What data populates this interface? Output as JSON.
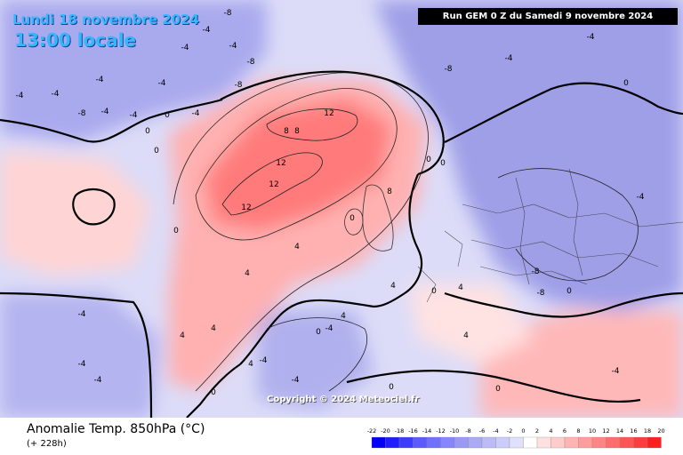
{
  "header": {
    "date_line": "Lundi 18 novembre 2024",
    "time_line": "13:00 locale",
    "run_banner": "Run GEM 0 Z du Samedi 9 novembre 2024"
  },
  "copyright": "Copyright © 2024 Meteociel.fr",
  "footer": {
    "title": "Anomalie Temp. 850hPa (°C)",
    "lead_time": "(+ 228h)"
  },
  "legend": {
    "ticks": [
      "-22",
      "-20",
      "-18",
      "-16",
      "-14",
      "-12",
      "-10",
      "-8",
      "-6",
      "-4",
      "-2",
      "0",
      "2",
      "4",
      "6",
      "8",
      "10",
      "12",
      "14",
      "16",
      "18",
      "20"
    ],
    "colors": [
      "#0000ff",
      "#1e1eff",
      "#3c3cff",
      "#5a5aff",
      "#7070ff",
      "#8585ff",
      "#9a9af5",
      "#aaaaf5",
      "#bbbbf8",
      "#ccccfa",
      "#e0e0fc",
      "#ffffff",
      "#ffe0e0",
      "#ffcccc",
      "#ffb4b4",
      "#ff9c9c",
      "#ff8484",
      "#ff6c6c",
      "#ff5454",
      "#ff3c3c",
      "#ff1e1e"
    ]
  },
  "map_labels": [
    {
      "text": "-8"
    },
    {
      "text": "-4"
    },
    {
      "text": "-4"
    },
    {
      "text": "-4"
    },
    {
      "text": "-8"
    },
    {
      "text": "-8"
    },
    {
      "text": "-4"
    },
    {
      "text": "0"
    },
    {
      "text": "-4"
    },
    {
      "text": "-4"
    },
    {
      "text": "-8"
    },
    {
      "text": "-4"
    },
    {
      "text": "-4"
    },
    {
      "text": "0"
    },
    {
      "text": "-4"
    },
    {
      "text": "-4"
    },
    {
      "text": "0"
    },
    {
      "text": "12"
    },
    {
      "text": "8"
    },
    {
      "text": "8"
    },
    {
      "text": "12"
    },
    {
      "text": "12"
    },
    {
      "text": "12"
    },
    {
      "text": "8"
    },
    {
      "text": "4"
    },
    {
      "text": "4"
    },
    {
      "text": "0"
    },
    {
      "text": "0"
    },
    {
      "text": "4"
    },
    {
      "text": "4"
    },
    {
      "text": "4"
    },
    {
      "text": "0"
    },
    {
      "text": "-4"
    },
    {
      "text": "-4"
    },
    {
      "text": "-4"
    },
    {
      "text": "0"
    },
    {
      "text": "-4"
    },
    {
      "text": "-4"
    },
    {
      "text": "0"
    },
    {
      "text": "-4"
    },
    {
      "text": "-8"
    },
    {
      "text": "-8"
    },
    {
      "text": "-8"
    },
    {
      "text": "-4"
    },
    {
      "text": "0"
    },
    {
      "text": "4"
    },
    {
      "text": "4"
    },
    {
      "text": "0"
    },
    {
      "text": "-4"
    },
    {
      "text": "-4"
    },
    {
      "text": "0"
    },
    {
      "text": "0"
    },
    {
      "text": "4"
    },
    {
      "text": "4"
    },
    {
      "text": "0"
    },
    {
      "text": "-4"
    },
    {
      "text": "0"
    }
  ]
}
